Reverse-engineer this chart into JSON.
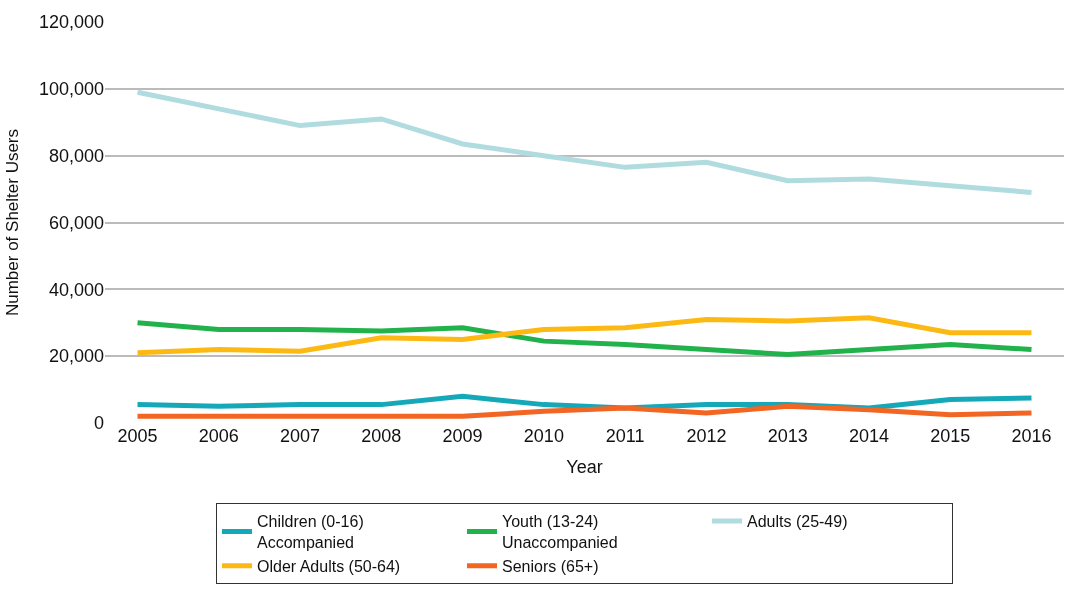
{
  "chart_data": {
    "type": "line",
    "xlabel": "Year",
    "ylabel": "Number of Shelter Users",
    "categories": [
      "2005",
      "2006",
      "2007",
      "2008",
      "2009",
      "2010",
      "2011",
      "2012",
      "2013",
      "2014",
      "2015",
      "2016"
    ],
    "series": [
      {
        "name": "Children (0-16)\nAccompanied",
        "color": "#14a8b8",
        "values": [
          5500,
          5000,
          5500,
          5500,
          8000,
          5500,
          4500,
          5500,
          5500,
          4500,
          7000,
          7500
        ]
      },
      {
        "name": "Youth (13-24)\nUnaccompanied",
        "color": "#21b24b",
        "values": [
          30000,
          28000,
          28000,
          27500,
          28500,
          24500,
          23500,
          22000,
          20500,
          22000,
          23500,
          22000
        ]
      },
      {
        "name": "Adults (25-49)",
        "color": "#b0dce0",
        "values": [
          99000,
          94000,
          89000,
          91000,
          83500,
          80000,
          76500,
          78000,
          72500,
          73000,
          71000,
          69000
        ]
      },
      {
        "name": "Older Adults (50-64)",
        "color": "#fdb913",
        "values": [
          21000,
          22000,
          21500,
          25500,
          25000,
          28000,
          28500,
          31000,
          30500,
          31500,
          27000,
          27000
        ]
      },
      {
        "name": "Seniors (65+)",
        "color": "#f26522",
        "values": [
          2000,
          2000,
          2000,
          2000,
          2000,
          3500,
          4500,
          3000,
          5000,
          4000,
          2500,
          3000
        ]
      }
    ],
    "ylim": [
      0,
      120000
    ],
    "yticks": [
      {
        "value": 0,
        "label": "0"
      },
      {
        "value": 20000,
        "label": "20,000"
      },
      {
        "value": 40000,
        "label": "40,000"
      },
      {
        "value": 60000,
        "label": "60,000"
      },
      {
        "value": 80000,
        "label": "80,000"
      },
      {
        "value": 100000,
        "label": "100,000"
      },
      {
        "value": 120000,
        "label": "120,000"
      }
    ],
    "grid": "y",
    "legend": "bottom",
    "marker": "none",
    "line_style": "solid"
  }
}
